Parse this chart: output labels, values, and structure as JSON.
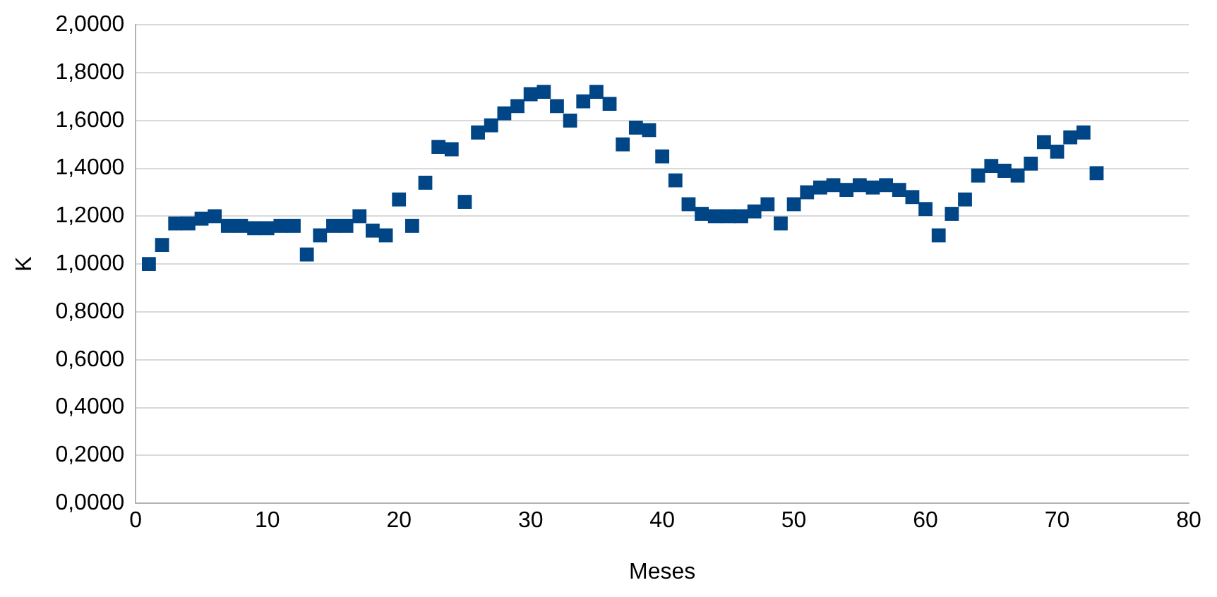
{
  "chart_data": {
    "type": "scatter",
    "xlabel": "Meses",
    "ylabel": "K",
    "x": [
      1,
      2,
      3,
      4,
      5,
      6,
      7,
      8,
      9,
      10,
      11,
      12,
      13,
      14,
      15,
      16,
      17,
      18,
      19,
      20,
      21,
      22,
      23,
      24,
      25,
      26,
      27,
      28,
      29,
      30,
      31,
      32,
      33,
      34,
      35,
      36,
      37,
      38,
      39,
      40,
      41,
      42,
      43,
      44,
      45,
      46,
      47,
      48,
      49,
      50,
      51,
      52,
      53,
      54,
      55,
      56,
      57,
      58,
      59,
      60,
      61,
      62,
      63,
      64,
      65,
      66,
      67,
      68,
      69,
      70,
      71,
      72,
      73
    ],
    "series": [
      {
        "color": "#004586",
        "values": [
          1.0,
          1.08,
          1.17,
          1.17,
          1.19,
          1.2,
          1.16,
          1.16,
          1.15,
          1.15,
          1.16,
          1.16,
          1.04,
          1.12,
          1.16,
          1.16,
          1.2,
          1.14,
          1.12,
          1.27,
          1.16,
          1.34,
          1.49,
          1.48,
          1.26,
          1.55,
          1.58,
          1.63,
          1.66,
          1.71,
          1.72,
          1.66,
          1.6,
          1.68,
          1.72,
          1.67,
          1.5,
          1.57,
          1.56,
          1.45,
          1.35,
          1.25,
          1.21,
          1.2,
          1.2,
          1.2,
          1.22,
          1.25,
          1.17,
          1.25,
          1.3,
          1.32,
          1.33,
          1.31,
          1.33,
          1.32,
          1.33,
          1.31,
          1.28,
          1.23,
          1.12,
          1.21,
          1.27,
          1.37,
          1.41,
          1.39,
          1.37,
          1.42,
          1.51,
          1.47,
          1.53,
          1.55,
          1.38
        ]
      }
    ],
    "xlim": [
      0,
      80
    ],
    "xticks": [
      0,
      10,
      20,
      30,
      40,
      50,
      60,
      70,
      80
    ],
    "ylim": [
      0,
      2
    ],
    "yticks": [
      {
        "value": 0,
        "label": "0,0000"
      },
      {
        "value": 0.2,
        "label": "0,2000"
      },
      {
        "value": 0.4,
        "label": "0,4000"
      },
      {
        "value": 0.6,
        "label": "0,6000"
      },
      {
        "value": 0.8,
        "label": "0,8000"
      },
      {
        "value": 1,
        "label": "1,0000"
      },
      {
        "value": 1.2,
        "label": "1,2000"
      },
      {
        "value": 1.4,
        "label": "1,4000"
      },
      {
        "value": 1.6,
        "label": "1,6000"
      },
      {
        "value": 1.8,
        "label": "1,8000"
      },
      {
        "value": 2,
        "label": "2,0000"
      }
    ],
    "grid": "y",
    "marker": "square",
    "legend": false
  }
}
